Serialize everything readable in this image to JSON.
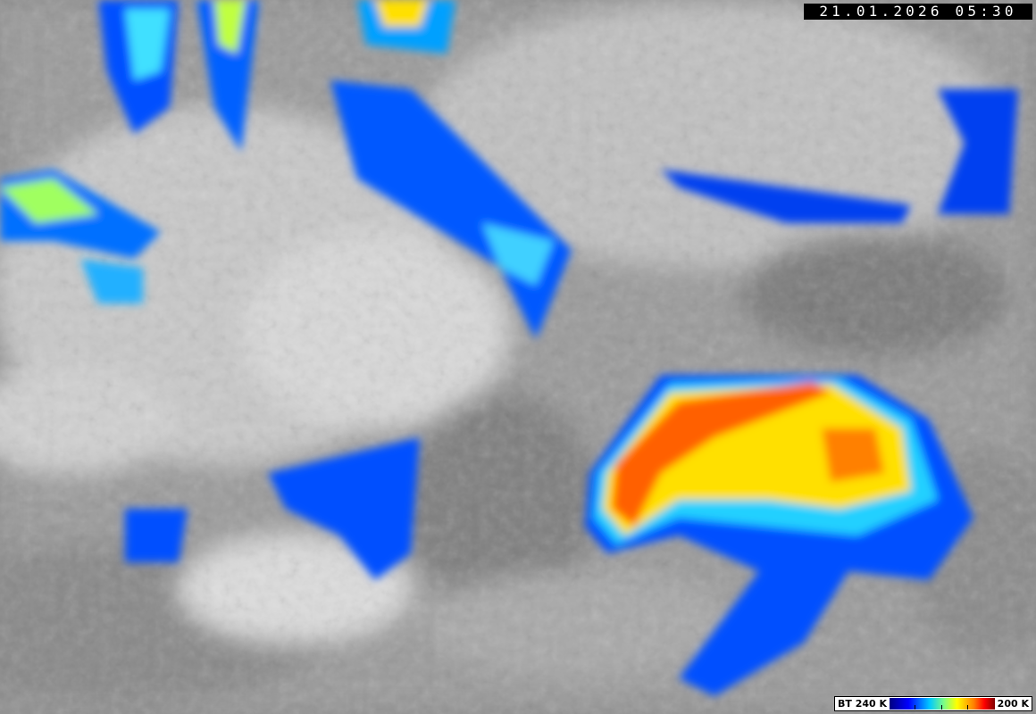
{
  "image": {
    "type": "infrared satellite image",
    "timestamp": "21.01.2026 05:30",
    "legend": {
      "left_label": "BT 240 K",
      "right_label": "200 K",
      "colors": [
        "#000080",
        "#0000ff",
        "#00c8ff",
        "#80ff80",
        "#ffff00",
        "#ff8000",
        "#ff0000",
        "#800000"
      ]
    }
  }
}
